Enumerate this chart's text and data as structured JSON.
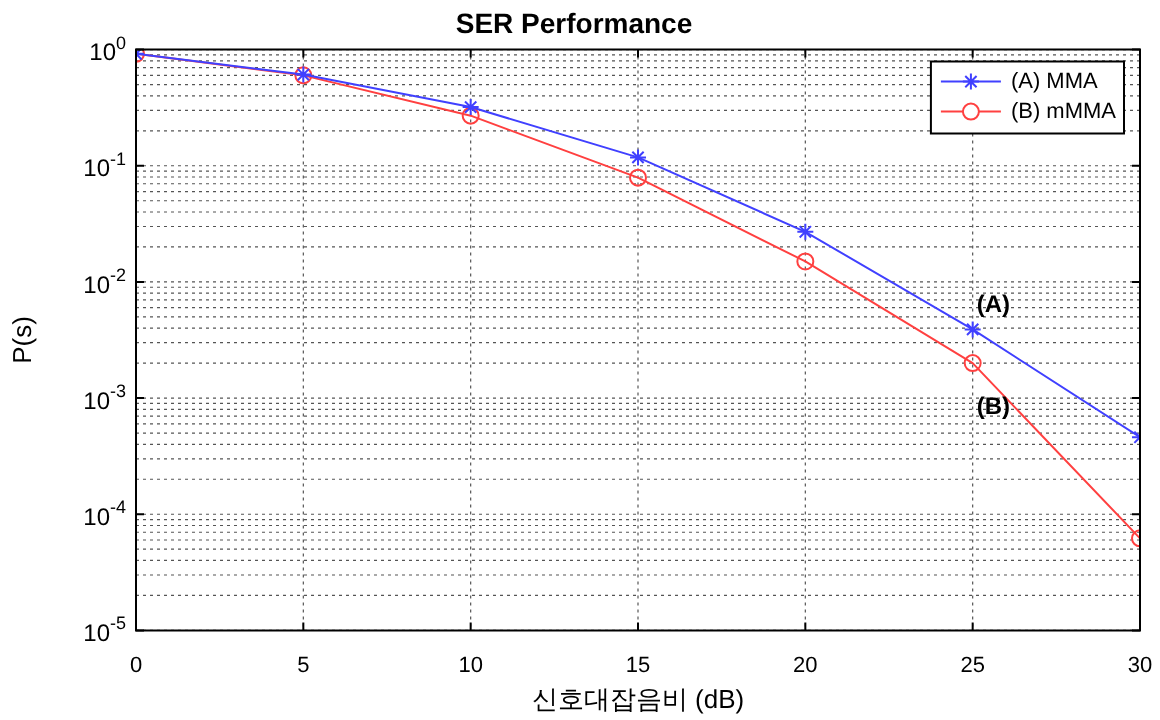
{
  "chart_data": {
    "type": "line",
    "title": "SER Performance",
    "xlabel": "신호대잡음비 (dB)",
    "ylabel": "P(s)",
    "x": [
      0,
      5,
      10,
      15,
      20,
      25,
      30
    ],
    "series": [
      {
        "name": "(A) MMA",
        "color": "#4040ff",
        "marker": "cross",
        "values": [
          0.92,
          0.61,
          0.32,
          0.118,
          0.027,
          0.0039,
          0.00046
        ]
      },
      {
        "name": "(B) mMMA",
        "color": "#ff4040",
        "marker": "circle",
        "values": [
          0.92,
          0.6,
          0.27,
          0.079,
          0.015,
          0.002,
          6.2e-05
        ]
      }
    ],
    "xlim": [
      0,
      30
    ],
    "xticks": [
      0,
      5,
      10,
      15,
      20,
      25,
      30
    ],
    "ylim": [
      1e-05,
      1
    ],
    "yticks": [
      {
        "value": 1e-05,
        "label": "10$^{-5}$"
      },
      {
        "value": 0.0001,
        "label": "10$^{-4}$"
      },
      {
        "value": 0.001,
        "label": "10$^{-3}$"
      },
      {
        "value": 0.01,
        "label": "10$^{-2}$"
      },
      {
        "value": 0.1,
        "label": "10$^{-1}$"
      },
      {
        "value": 1,
        "label": "10$^{0}$"
      }
    ],
    "log": "y",
    "grid": true,
    "legend": "top right",
    "line_style": "solid",
    "annotations": [
      "(A)",
      "(B)"
    ]
  }
}
